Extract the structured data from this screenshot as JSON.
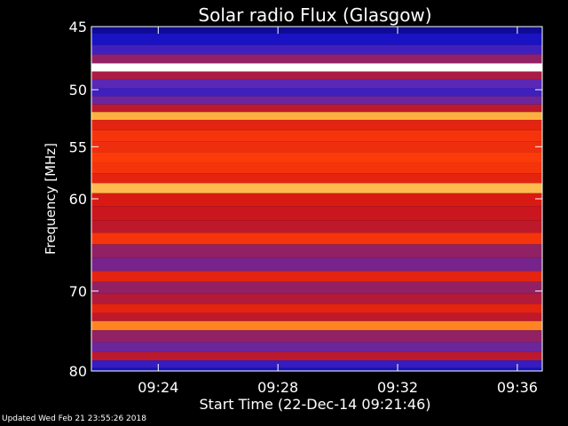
{
  "chart_data": {
    "type": "heatmap",
    "title": "Solar radio Flux (Glasgow)",
    "ylabel": "Frequency [MHz]",
    "xlabel": "Start Time (22-Dec-14 09:21:46)",
    "y_axis": {
      "ticks": [
        45,
        50,
        55,
        60,
        70,
        80
      ],
      "tick_labels": [
        "45",
        "50",
        "55",
        "60",
        "70",
        "80"
      ],
      "range": [
        45,
        80
      ],
      "scale": "log",
      "direction": "increasing-downward"
    },
    "x_axis": {
      "ticks": [
        "09:24",
        "09:28",
        "09:32",
        "09:36"
      ],
      "tick_labels": [
        "09:24",
        "09:28",
        "09:32",
        "09:36"
      ],
      "range": [
        "09:21:46",
        "09:36:50"
      ]
    },
    "grid": false,
    "colormap": [
      "#06046e",
      "#1a14c8",
      "#5a28b4",
      "#a01e50",
      "#d21414",
      "#ff3c0a",
      "#ff9b28",
      "#ffeb8c",
      "#ffffff"
    ],
    "bands": [
      {
        "freq": 45.0,
        "intensity": 0.05
      },
      {
        "freq": 46.0,
        "intensity": 0.12
      },
      {
        "freq": 46.8,
        "intensity": 0.2
      },
      {
        "freq": 47.5,
        "intensity": 0.35
      },
      {
        "freq": 48.2,
        "intensity": 1.0
      },
      {
        "freq": 48.8,
        "intensity": 0.4
      },
      {
        "freq": 49.5,
        "intensity": 0.25
      },
      {
        "freq": 50.2,
        "intensity": 0.2
      },
      {
        "freq": 50.9,
        "intensity": 0.28
      },
      {
        "freq": 51.6,
        "intensity": 0.45
      },
      {
        "freq": 52.2,
        "intensity": 0.78
      },
      {
        "freq": 53.0,
        "intensity": 0.55
      },
      {
        "freq": 54.0,
        "intensity": 0.6
      },
      {
        "freq": 55.0,
        "intensity": 0.58
      },
      {
        "freq": 56.0,
        "intensity": 0.62
      },
      {
        "freq": 57.0,
        "intensity": 0.6
      },
      {
        "freq": 58.0,
        "intensity": 0.55
      },
      {
        "freq": 58.9,
        "intensity": 0.8
      },
      {
        "freq": 60.0,
        "intensity": 0.52
      },
      {
        "freq": 61.5,
        "intensity": 0.48
      },
      {
        "freq": 63.0,
        "intensity": 0.45
      },
      {
        "freq": 64.0,
        "intensity": 0.6
      },
      {
        "freq": 65.5,
        "intensity": 0.35
      },
      {
        "freq": 67.0,
        "intensity": 0.3
      },
      {
        "freq": 68.4,
        "intensity": 0.55
      },
      {
        "freq": 69.5,
        "intensity": 0.35
      },
      {
        "freq": 71.0,
        "intensity": 0.42
      },
      {
        "freq": 72.0,
        "intensity": 0.55
      },
      {
        "freq": 73.2,
        "intensity": 0.45
      },
      {
        "freq": 74.0,
        "intensity": 0.72
      },
      {
        "freq": 75.5,
        "intensity": 0.35
      },
      {
        "freq": 77.0,
        "intensity": 0.28
      },
      {
        "freq": 78.0,
        "intensity": 0.45
      },
      {
        "freq": 79.2,
        "intensity": 0.18
      },
      {
        "freq": 80.0,
        "intensity": 0.1
      }
    ]
  },
  "footer": {
    "updated": "Updated Wed Feb 21 23:55:26 2018"
  }
}
